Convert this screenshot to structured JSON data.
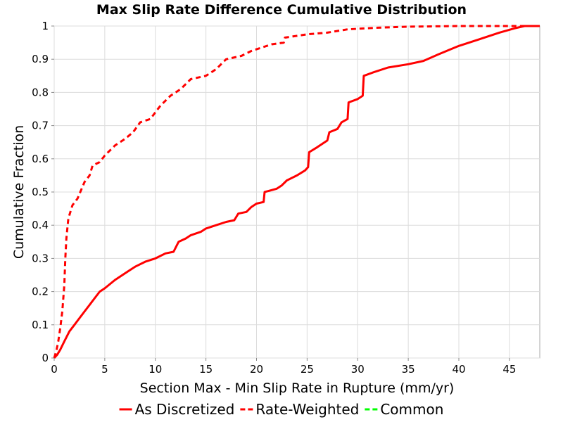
{
  "chart_data": {
    "type": "line",
    "title": "Max Slip Rate Difference Cumulative Distribution",
    "xlabel": "Section Max - Min Slip Rate in Rupture (mm/yr)",
    "ylabel": "Cumulative Fraction",
    "xlim": [
      0,
      48
    ],
    "ylim": [
      0,
      1
    ],
    "x_ticks": [
      "0",
      "5",
      "10",
      "15",
      "20",
      "25",
      "30",
      "35",
      "40",
      "45"
    ],
    "y_ticks": [
      "0",
      "0.1",
      "0.2",
      "0.3",
      "0.4",
      "0.5",
      "0.6",
      "0.7",
      "0.8",
      "0.9",
      "1"
    ],
    "grid": true,
    "legend_position": "bottom",
    "series": [
      {
        "name": "As Discretized",
        "color": "#ff0000",
        "dash": "solid",
        "points": [
          [
            0,
            0
          ],
          [
            0.3,
            0.01
          ],
          [
            0.6,
            0.025
          ],
          [
            1.0,
            0.05
          ],
          [
            1.5,
            0.08
          ],
          [
            2,
            0.1
          ],
          [
            2.5,
            0.12
          ],
          [
            3,
            0.14
          ],
          [
            3.5,
            0.16
          ],
          [
            4,
            0.18
          ],
          [
            4.5,
            0.2
          ],
          [
            5,
            0.21
          ],
          [
            6,
            0.235
          ],
          [
            7,
            0.255
          ],
          [
            8,
            0.275
          ],
          [
            9,
            0.29
          ],
          [
            10,
            0.3
          ],
          [
            11,
            0.315
          ],
          [
            11.8,
            0.32
          ],
          [
            12.3,
            0.35
          ],
          [
            13,
            0.36
          ],
          [
            13.5,
            0.37
          ],
          [
            14.5,
            0.38
          ],
          [
            15,
            0.39
          ],
          [
            16,
            0.4
          ],
          [
            17,
            0.41
          ],
          [
            17.8,
            0.415
          ],
          [
            18.2,
            0.435
          ],
          [
            19,
            0.44
          ],
          [
            19.5,
            0.455
          ],
          [
            20,
            0.465
          ],
          [
            20.7,
            0.47
          ],
          [
            20.8,
            0.5
          ],
          [
            22,
            0.51
          ],
          [
            22.5,
            0.52
          ],
          [
            23,
            0.535
          ],
          [
            24,
            0.55
          ],
          [
            24.8,
            0.565
          ],
          [
            25.1,
            0.575
          ],
          [
            25.2,
            0.62
          ],
          [
            26,
            0.635
          ],
          [
            27,
            0.655
          ],
          [
            27.2,
            0.68
          ],
          [
            28,
            0.69
          ],
          [
            28.4,
            0.71
          ],
          [
            29,
            0.72
          ],
          [
            29.1,
            0.77
          ],
          [
            30,
            0.78
          ],
          [
            30.5,
            0.79
          ],
          [
            30.6,
            0.85
          ],
          [
            31.5,
            0.86
          ],
          [
            33,
            0.875
          ],
          [
            35,
            0.885
          ],
          [
            36.5,
            0.895
          ],
          [
            38,
            0.915
          ],
          [
            40,
            0.94
          ],
          [
            42,
            0.96
          ],
          [
            44,
            0.98
          ],
          [
            45.5,
            0.993
          ],
          [
            46.5,
            1
          ],
          [
            48,
            1
          ]
        ]
      },
      {
        "name": "Rate-Weighted",
        "color": "#ff0000",
        "dash": "dashed",
        "points": [
          [
            0,
            0
          ],
          [
            0.2,
            0.02
          ],
          [
            0.4,
            0.05
          ],
          [
            0.6,
            0.09
          ],
          [
            0.8,
            0.14
          ],
          [
            1.0,
            0.22
          ],
          [
            1.1,
            0.3
          ],
          [
            1.2,
            0.36
          ],
          [
            1.4,
            0.42
          ],
          [
            1.8,
            0.46
          ],
          [
            2.3,
            0.48
          ],
          [
            3,
            0.53
          ],
          [
            3.5,
            0.55
          ],
          [
            3.8,
            0.58
          ],
          [
            4.5,
            0.59
          ],
          [
            5,
            0.61
          ],
          [
            6,
            0.64
          ],
          [
            7,
            0.66
          ],
          [
            7.8,
            0.68
          ],
          [
            8.5,
            0.71
          ],
          [
            9.5,
            0.72
          ],
          [
            10.5,
            0.76
          ],
          [
            11.5,
            0.79
          ],
          [
            12.5,
            0.81
          ],
          [
            13.5,
            0.84
          ],
          [
            15,
            0.85
          ],
          [
            16,
            0.87
          ],
          [
            17,
            0.9
          ],
          [
            18.5,
            0.91
          ],
          [
            19.5,
            0.925
          ],
          [
            20.5,
            0.935
          ],
          [
            21.5,
            0.945
          ],
          [
            22.7,
            0.95
          ],
          [
            22.8,
            0.965
          ],
          [
            25,
            0.975
          ],
          [
            27,
            0.98
          ],
          [
            29,
            0.99
          ],
          [
            32,
            0.995
          ],
          [
            35,
            0.998
          ],
          [
            40,
            1
          ],
          [
            48,
            1
          ]
        ]
      },
      {
        "name": "Common",
        "color": "#00ff00",
        "dash": "dashed",
        "points": []
      }
    ]
  }
}
